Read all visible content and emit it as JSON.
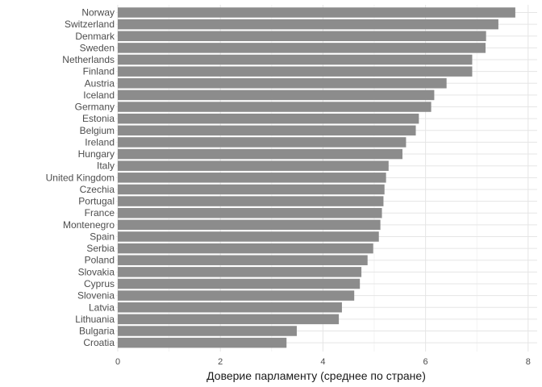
{
  "chart_data": {
    "type": "bar",
    "orientation": "horizontal",
    "title": "",
    "xlabel": "Доверие парламенту (среднее по стране)",
    "ylabel": "",
    "xlim": [
      0,
      8
    ],
    "xticks": [
      0,
      2,
      4,
      6,
      8
    ],
    "grid": true,
    "bar_color": "#8c8c8c",
    "categories": [
      "Norway",
      "Switzerland",
      "Denmark",
      "Sweden",
      "Netherlands",
      "Finland",
      "Austria",
      "Iceland",
      "Germany",
      "Estonia",
      "Belgium",
      "Ireland",
      "Hungary",
      "Italy",
      "United Kingdom",
      "Czechia",
      "Portugal",
      "France",
      "Montenegro",
      "Spain",
      "Serbia",
      "Poland",
      "Slovakia",
      "Cyprus",
      "Slovenia",
      "Latvia",
      "Lithuania",
      "Bulgaria",
      "Croatia"
    ],
    "values": [
      7.75,
      7.42,
      7.18,
      7.17,
      6.91,
      6.91,
      6.41,
      6.17,
      6.11,
      5.87,
      5.81,
      5.62,
      5.55,
      5.28,
      5.23,
      5.2,
      5.18,
      5.15,
      5.12,
      5.09,
      4.98,
      4.87,
      4.75,
      4.72,
      4.61,
      4.37,
      4.31,
      3.49,
      3.29
    ]
  }
}
